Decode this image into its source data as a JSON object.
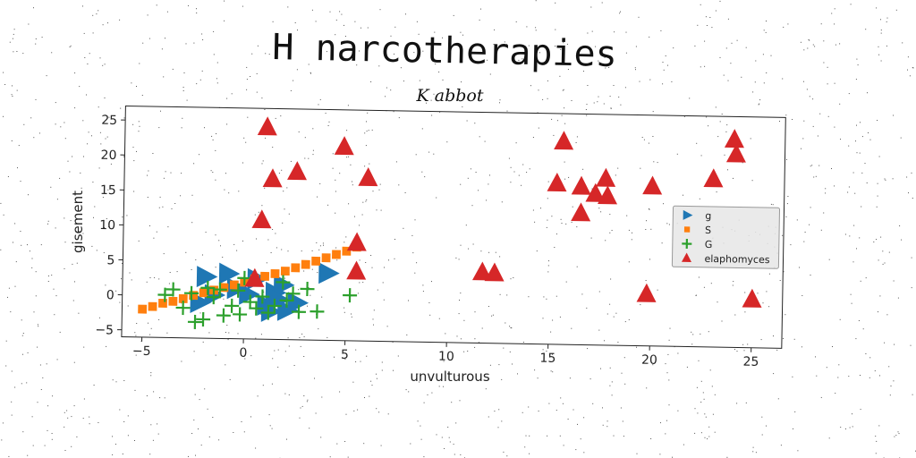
{
  "page": {
    "title": "H narcotherapies"
  },
  "chart_data": {
    "type": "scatter",
    "title": "H narcotherapies",
    "subtitle": "K abbot",
    "xlabel": "unvulturous",
    "ylabel": "gisement",
    "xlim": [
      -6,
      26.5
    ],
    "ylim": [
      -6,
      27
    ],
    "xticks": [
      -5,
      0,
      5,
      10,
      15,
      20,
      25
    ],
    "yticks": [
      -5,
      0,
      5,
      10,
      15,
      20,
      25
    ],
    "grid": false,
    "legend_position": "right",
    "series": [
      {
        "name": "g",
        "marker": "triangle-right",
        "color": "#1f77b4",
        "points": [
          [
            -1.9,
            2.8
          ],
          [
            -1.5,
            0.2
          ],
          [
            -0.8,
            3.3
          ],
          [
            -0.4,
            1.2
          ],
          [
            0.2,
            0.4
          ],
          [
            0.6,
            2.6
          ],
          [
            1.1,
            -1.1
          ],
          [
            1.5,
            0.7
          ],
          [
            1.9,
            1.8
          ],
          [
            1.3,
            -2.0
          ],
          [
            2.1,
            -1.8
          ],
          [
            2.6,
            -0.7
          ],
          [
            4.1,
            3.6
          ],
          [
            -2.2,
            -0.9
          ],
          [
            1.7,
            -0.3
          ]
        ]
      },
      {
        "name": "S",
        "marker": "square",
        "color": "#ff7f0e",
        "points": [
          [
            -5.0,
            -2.0
          ],
          [
            -4.5,
            -1.6
          ],
          [
            -4.0,
            -1.1
          ],
          [
            -3.5,
            -0.8
          ],
          [
            -3.0,
            -0.4
          ],
          [
            -2.5,
            0.1
          ],
          [
            -2.0,
            0.5
          ],
          [
            -1.5,
            0.9
          ],
          [
            -1.0,
            1.3
          ],
          [
            -0.5,
            1.7
          ],
          [
            0.0,
            2.1
          ],
          [
            0.5,
            2.6
          ],
          [
            1.0,
            3.0
          ],
          [
            1.5,
            3.4
          ],
          [
            2.0,
            3.8
          ],
          [
            2.5,
            4.3
          ],
          [
            3.0,
            4.8
          ],
          [
            3.5,
            5.3
          ],
          [
            4.0,
            5.8
          ],
          [
            4.5,
            6.3
          ],
          [
            5.0,
            6.8
          ],
          [
            5.5,
            7.4
          ]
        ]
      },
      {
        "name": "G",
        "marker": "plus",
        "color": "#2ca02c",
        "points": [
          [
            -3.9,
            0.1
          ],
          [
            -3.5,
            0.9
          ],
          [
            -3.0,
            -1.7
          ],
          [
            -2.6,
            0.4
          ],
          [
            -2.4,
            -3.7
          ],
          [
            -2.0,
            -3.3
          ],
          [
            -1.8,
            1.2
          ],
          [
            -1.5,
            -0.1
          ],
          [
            -1.2,
            1.0
          ],
          [
            -1.0,
            -2.7
          ],
          [
            -0.6,
            -1.3
          ],
          [
            -0.3,
            0.9
          ],
          [
            0.0,
            2.7
          ],
          [
            0.3,
            -0.7
          ],
          [
            0.6,
            -1.6
          ],
          [
            0.9,
            0.1
          ],
          [
            1.2,
            -2.2
          ],
          [
            1.5,
            -1.2
          ],
          [
            1.9,
            2.2
          ],
          [
            2.1,
            -0.4
          ],
          [
            2.4,
            0.6
          ],
          [
            2.7,
            -2.0
          ],
          [
            3.1,
            1.3
          ],
          [
            3.6,
            -1.9
          ],
          [
            5.2,
            0.5
          ],
          [
            -0.2,
            -2.5
          ]
        ]
      },
      {
        "name": "elaphomyces",
        "marker": "triangle-up",
        "color": "#d62728",
        "points": [
          [
            1.0,
            24.3
          ],
          [
            1.3,
            16.9
          ],
          [
            2.5,
            18.0
          ],
          [
            0.8,
            11.0
          ],
          [
            0.5,
            2.6
          ],
          [
            4.8,
            21.7
          ],
          [
            6.0,
            17.3
          ],
          [
            5.5,
            8.0
          ],
          [
            5.5,
            3.9
          ],
          [
            11.7,
            4.1
          ],
          [
            12.3,
            4.0
          ],
          [
            15.3,
            17.0
          ],
          [
            15.6,
            23.0
          ],
          [
            16.5,
            16.6
          ],
          [
            16.5,
            12.8
          ],
          [
            17.2,
            15.6
          ],
          [
            17.7,
            17.8
          ],
          [
            17.8,
            15.3
          ],
          [
            19.8,
            1.4
          ],
          [
            20.0,
            16.8
          ],
          [
            23.0,
            18.0
          ],
          [
            24.0,
            23.7
          ],
          [
            24.1,
            21.6
          ],
          [
            25.0,
            0.9
          ]
        ]
      }
    ]
  }
}
